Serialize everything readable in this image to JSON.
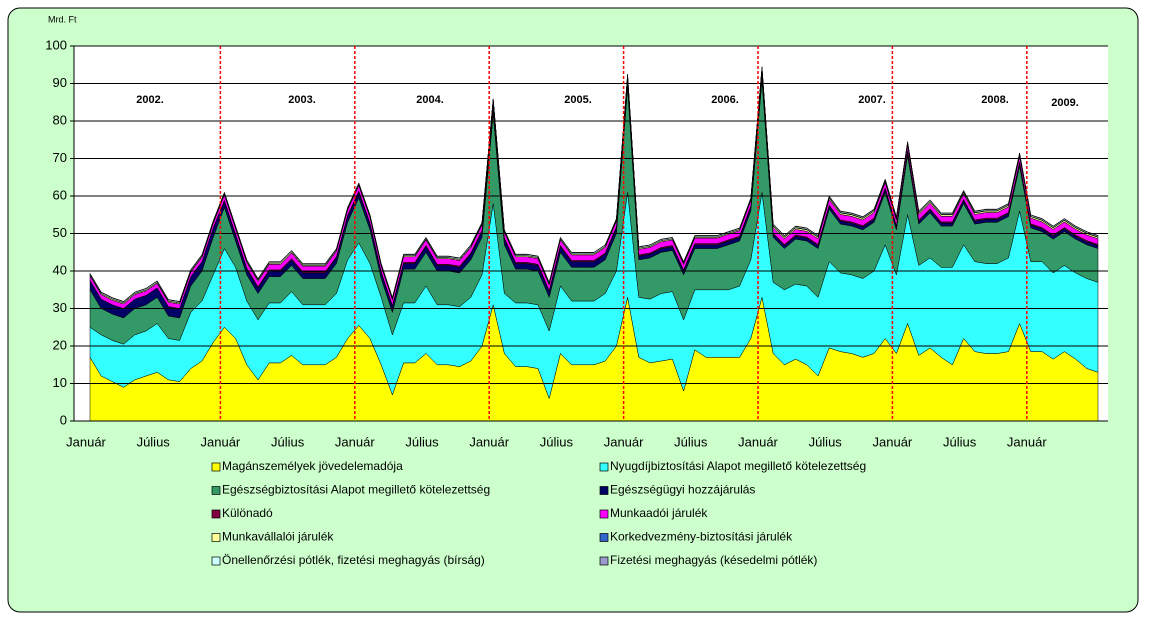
{
  "chart_data": {
    "type": "stacked-area",
    "y_label": "Mrd. Ft",
    "categories": [
      "Január",
      null,
      null,
      null,
      null,
      null,
      "Július",
      null,
      null,
      null,
      null,
      null,
      "Január",
      null,
      null,
      null,
      null,
      null,
      "Július",
      null,
      null,
      null,
      null,
      null,
      "Január",
      null,
      null,
      null,
      null,
      null,
      "Július",
      null,
      null,
      null,
      null,
      null,
      "Január",
      null,
      null,
      null,
      null,
      null,
      "Július",
      null,
      null,
      null,
      null,
      null,
      "Január",
      null,
      null,
      null,
      null,
      null,
      "Július",
      null,
      null,
      null,
      null,
      null,
      "Január",
      null,
      null,
      null,
      null,
      null,
      "Július",
      null,
      null,
      null,
      null,
      null,
      "Január",
      null,
      null,
      null,
      null,
      null,
      "Július",
      null,
      null,
      null,
      null,
      null,
      "Január",
      null,
      null,
      null,
      null,
      null,
      null
    ],
    "annotations": [
      "2002.",
      "2003.",
      "2004.",
      "2005.",
      "2006.",
      "2007.",
      "2008.",
      "2009."
    ],
    "ylim": [
      0,
      100
    ],
    "yticks": [
      0,
      10,
      20,
      30,
      40,
      50,
      60,
      70,
      80,
      90,
      100
    ],
    "grid": true,
    "series": [
      {
        "name": "Magánszemélyek jövedelemadója",
        "color": "#ffff00",
        "values": [
          17,
          12,
          10.5,
          9,
          11,
          12,
          13,
          11,
          10.5,
          14,
          16,
          21,
          25,
          22,
          15,
          11,
          15.5,
          15.5,
          17.5,
          15,
          15,
          15,
          17,
          22,
          25.5,
          22,
          15,
          7,
          15.5,
          15.5,
          18,
          15,
          15,
          14.5,
          16,
          20,
          31,
          18,
          14.5,
          14.5,
          14,
          6,
          18,
          15,
          15,
          15,
          16,
          20,
          33,
          17,
          15.5,
          16,
          16.5,
          8,
          19,
          17,
          17,
          17,
          17,
          22,
          33,
          18,
          15,
          16.5,
          15,
          12,
          19.5,
          18.5,
          18,
          17,
          18,
          22,
          18,
          26,
          17.5,
          19.5,
          17,
          15,
          22,
          18.5,
          18,
          18,
          18.5,
          26,
          18.5,
          18.5,
          16.5,
          18.5,
          16.5,
          14,
          13
        ]
      },
      {
        "name": "Nyugdíjbiztosítási Alapot megillető kötelezettség",
        "color": "#33ffff",
        "values": [
          8,
          11,
          11,
          11.5,
          12,
          12,
          13,
          11,
          11,
          15,
          16,
          18,
          21,
          19,
          17,
          16,
          16,
          16,
          17,
          16,
          16,
          16,
          17,
          21,
          22,
          20,
          18,
          16,
          16,
          16,
          18,
          16,
          16,
          16,
          17,
          19,
          27,
          16,
          17,
          17,
          17,
          18,
          18,
          17,
          17,
          17,
          18,
          20,
          28,
          16,
          17,
          18,
          18,
          19,
          16,
          18,
          18,
          18,
          19,
          21,
          28,
          19,
          20,
          20,
          21,
          21,
          23,
          21,
          21,
          21,
          22,
          25,
          21,
          29,
          24,
          24,
          24,
          26,
          25,
          24,
          24,
          24,
          25,
          30,
          24,
          24,
          23,
          23,
          23,
          24,
          24
        ]
      },
      {
        "name": "Egészségbiztosítási Alapot megillető kötelezettség",
        "color": "#339966",
        "values": [
          10,
          7,
          7,
          7,
          7,
          7,
          7,
          6,
          6,
          7,
          8,
          10,
          11,
          7,
          7,
          7,
          7,
          7,
          7,
          7,
          7,
          7,
          8,
          10,
          12,
          9,
          5,
          6,
          9,
          9,
          9,
          9,
          9,
          9,
          10,
          10,
          24,
          13,
          9,
          9,
          9,
          9,
          9,
          9,
          9,
          9,
          9,
          10,
          28,
          10,
          11,
          11,
          11,
          12,
          11,
          11,
          11,
          12,
          12,
          13,
          30,
          12,
          11,
          12,
          12,
          13,
          14,
          13,
          13,
          13,
          13,
          14,
          12,
          16,
          11,
          12,
          11,
          11,
          11,
          10,
          11,
          11,
          11,
          12,
          9,
          8,
          9,
          9,
          9,
          9,
          9
        ]
      },
      {
        "name": "Egészségügyi hozzájárulás",
        "color": "#000066",
        "values": [
          2.5,
          2.5,
          2.5,
          2.5,
          2.5,
          2.5,
          2.5,
          2.5,
          2.5,
          2.5,
          2.5,
          2.5,
          1.5,
          1.5,
          1.5,
          1.5,
          1.5,
          1.5,
          1.5,
          1.5,
          1.5,
          1.5,
          1.5,
          1.5,
          1.5,
          1.5,
          1.5,
          1.5,
          1.5,
          1.5,
          1.5,
          1.5,
          1.5,
          1.5,
          1.5,
          1.5,
          1.5,
          1.5,
          1.5,
          1.5,
          1.5,
          1.5,
          1.5,
          1.5,
          1.5,
          1.5,
          1.5,
          1.5,
          1,
          1,
          1,
          1,
          1,
          1,
          1,
          1,
          1,
          1,
          1,
          1,
          0.8,
          0.8,
          0.8,
          0.8,
          0.8,
          0.8,
          0.8,
          0.8,
          0.8,
          0.8,
          0.8,
          0.8,
          0.8,
          0.8,
          0.8,
          0.8,
          0.8,
          0.8,
          0.8,
          0.8,
          0.8,
          0.8,
          0.8,
          0.8,
          0.8,
          0.8,
          0.8,
          0.8,
          0.8,
          0.8,
          0.8
        ]
      },
      {
        "name": "Különadó",
        "color": "#800040",
        "values": [
          0,
          0,
          0,
          0,
          0,
          0,
          0,
          0,
          0,
          0,
          0,
          0,
          0.3,
          0.3,
          0.3,
          0.3,
          0.3,
          0.3,
          0.3,
          0.3,
          0.3,
          0.3,
          0.3,
          0.3,
          0.3,
          0.3,
          0.3,
          0.3,
          0.3,
          0.3,
          0.3,
          0.3,
          0.3,
          0.3,
          0.3,
          0.3,
          0.3,
          0.3,
          0.3,
          0.3,
          0.3,
          0.3,
          0.3,
          0.3,
          0.3,
          0.3,
          0.3,
          0.3,
          0.3,
          0.3,
          0.3,
          0.3,
          0.3,
          0.3,
          0.3,
          0.3,
          0.3,
          0.3,
          0.3,
          0.3,
          0.3,
          0.3,
          0.3,
          0.3,
          0.3,
          0.3,
          0.3,
          0.3,
          0.3,
          0.3,
          0.3,
          0.3,
          0.3,
          0.3,
          0.3,
          0.3,
          0.3,
          0.3,
          0.3,
          0.3,
          0.3,
          0.3,
          0.3,
          0.3,
          0.3,
          0.3,
          0.3,
          0.3,
          0.3,
          0.3,
          0.3
        ]
      },
      {
        "name": "Munkaadói járulék",
        "color": "#ff00ff",
        "values": [
          1.2,
          1.2,
          1.2,
          1.2,
          1.2,
          1.2,
          1.2,
          1.2,
          1.2,
          1.2,
          1.2,
          1.2,
          1.5,
          1.5,
          1.5,
          1.5,
          1.5,
          1.5,
          1.5,
          1.5,
          1.5,
          1.5,
          1.5,
          1.5,
          1.5,
          1.5,
          1.5,
          1.5,
          1.5,
          1.5,
          1.5,
          1.5,
          1.5,
          1.5,
          1.5,
          1.5,
          1.5,
          1.5,
          1.5,
          1.5,
          1.5,
          1.5,
          1.5,
          1.5,
          1.5,
          1.5,
          1.5,
          1.5,
          1.5,
          1.5,
          1.5,
          1.5,
          1.5,
          1.5,
          1.5,
          1.5,
          1.5,
          1.5,
          1.5,
          1.5,
          1.5,
          1.5,
          1.5,
          1.5,
          1.5,
          1.5,
          1.5,
          1.5,
          1.5,
          1.5,
          1.5,
          1.5,
          1.5,
          1.5,
          1.5,
          1.5,
          1.5,
          1.5,
          1.5,
          1.5,
          1.5,
          1.5,
          1.5,
          1.5,
          1.5,
          1.5,
          1.5,
          1.5,
          1.5,
          1.5,
          1.5
        ]
      },
      {
        "name": "Munkavállalói járulék",
        "color": "#ffff99",
        "values": [
          0.3,
          0.3,
          0.3,
          0.3,
          0.3,
          0.3,
          0.3,
          0.3,
          0.3,
          0.3,
          0.3,
          0.3,
          0.3,
          0.3,
          0.3,
          0.3,
          0.3,
          0.3,
          0.3,
          0.3,
          0.3,
          0.3,
          0.3,
          0.3,
          0.3,
          0.3,
          0.3,
          0.3,
          0.3,
          0.3,
          0.3,
          0.3,
          0.3,
          0.3,
          0.3,
          0.3,
          0.3,
          0.3,
          0.3,
          0.3,
          0.3,
          0.3,
          0.3,
          0.3,
          0.3,
          0.3,
          0.3,
          0.3,
          0.3,
          0.3,
          0.3,
          0.3,
          0.3,
          0.3,
          0.3,
          0.3,
          0.3,
          0.3,
          0.3,
          0.3,
          0.4,
          0.4,
          0.4,
          0.4,
          0.4,
          0.4,
          0.4,
          0.4,
          0.4,
          0.4,
          0.4,
          0.4,
          0.4,
          0.4,
          0.4,
          0.4,
          0.4,
          0.4,
          0.4,
          0.4,
          0.4,
          0.4,
          0.4,
          0.4,
          0.4,
          0.4,
          0.4,
          0.4,
          0.4,
          0.4,
          0.4
        ]
      },
      {
        "name": "Korkedvezmény-biztosítási járulék",
        "color": "#3366cc",
        "values": [
          0,
          0,
          0,
          0,
          0,
          0,
          0,
          0,
          0,
          0,
          0,
          0,
          0,
          0,
          0,
          0,
          0,
          0,
          0,
          0,
          0,
          0,
          0,
          0,
          0,
          0,
          0,
          0,
          0,
          0,
          0,
          0,
          0,
          0,
          0,
          0,
          0,
          0,
          0,
          0,
          0,
          0,
          0,
          0,
          0,
          0,
          0,
          0,
          0,
          0,
          0,
          0,
          0,
          0,
          0,
          0,
          0,
          0,
          0,
          0,
          0.1,
          0.1,
          0.1,
          0.1,
          0.1,
          0.1,
          0.1,
          0.1,
          0.1,
          0.1,
          0.1,
          0.1,
          0.1,
          0.1,
          0.1,
          0.1,
          0.1,
          0.1,
          0.1,
          0.1,
          0.1,
          0.1,
          0.1,
          0.1,
          0.1,
          0.1,
          0.1,
          0.1,
          0.1,
          0.1,
          0.1
        ]
      },
      {
        "name": "Önellenőrzési pótlék, fizetési meghagyás (bírság)",
        "color": "#ccffff",
        "values": [
          0.3,
          0.3,
          0.3,
          0.3,
          0.3,
          0.3,
          0.3,
          0.3,
          0.3,
          0.3,
          0.3,
          0.3,
          0.3,
          0.3,
          0.3,
          0.3,
          0.3,
          0.3,
          0.3,
          0.3,
          0.3,
          0.3,
          0.3,
          0.3,
          0.3,
          0.3,
          0.3,
          0.3,
          0.3,
          0.3,
          0.3,
          0.3,
          0.3,
          0.3,
          0.3,
          0.3,
          0.3,
          0.3,
          0.3,
          0.3,
          0.3,
          0.3,
          0.3,
          0.3,
          0.3,
          0.3,
          0.3,
          0.3,
          0.3,
          0.3,
          0.3,
          0.3,
          0.3,
          0.3,
          0.3,
          0.3,
          0.3,
          0.3,
          0.3,
          0.3,
          0.3,
          0.3,
          0.3,
          0.3,
          0.3,
          0.3,
          0.3,
          0.3,
          0.3,
          0.3,
          0.3,
          0.3,
          0.3,
          0.3,
          0.3,
          0.3,
          0.3,
          0.3,
          0.3,
          0.3,
          0.3,
          0.3,
          0.3,
          0.3,
          0.3,
          0.3,
          0.3,
          0.3,
          0.3,
          0.3,
          0.3
        ]
      },
      {
        "name": "Fizetési meghagyás (késedelmi pótlék)",
        "color": "#9999cc",
        "values": [
          0.1,
          0.1,
          0.1,
          0.1,
          0.1,
          0.1,
          0.1,
          0.1,
          0.1,
          0.1,
          0.1,
          0.1,
          0.1,
          0.1,
          0.1,
          0.1,
          0.1,
          0.1,
          0.1,
          0.1,
          0.1,
          0.1,
          0.1,
          0.1,
          0.1,
          0.1,
          0.1,
          0.1,
          0.1,
          0.1,
          0.1,
          0.1,
          0.1,
          0.1,
          0.1,
          0.1,
          0.1,
          0.1,
          0.1,
          0.1,
          0.1,
          0.1,
          0.1,
          0.1,
          0.1,
          0.1,
          0.1,
          0.1,
          0.1,
          0.1,
          0.1,
          0.1,
          0.1,
          0.1,
          0.1,
          0.1,
          0.1,
          0.1,
          0.1,
          0.1,
          0.1,
          0.1,
          0.1,
          0.1,
          0.1,
          0.1,
          0.1,
          0.1,
          0.1,
          0.1,
          0.1,
          0.1,
          0.1,
          0.1,
          0.1,
          0.1,
          0.1,
          0.1,
          0.1,
          0.1,
          0.1,
          0.1,
          0.1,
          0.1,
          0.1,
          0.1,
          0.1,
          0.1,
          0.1,
          0.1,
          0.1
        ]
      }
    ]
  }
}
